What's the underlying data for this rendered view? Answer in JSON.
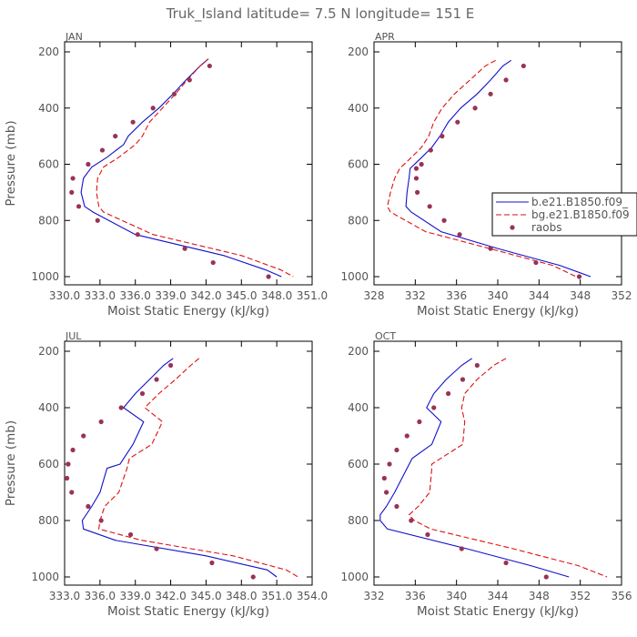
{
  "figure_title": "Truk_Island  latitude= 7.5 N longitude= 151 E",
  "legend": {
    "entries": [
      {
        "label": "b.e21.B1850.f09_",
        "color": "#1010cc",
        "style": "solid"
      },
      {
        "label": "bg.e21.B1850.f09",
        "color": "#dd1111",
        "style": "dashed"
      },
      {
        "label": "raobs",
        "color": "#993355",
        "style": "dot"
      }
    ]
  },
  "colors": {
    "model": "#1010cc",
    "bg": "#dd1111",
    "raobs": "#993355",
    "axis": "#000000",
    "text": "#555555"
  },
  "chart_data": [
    {
      "type": "line",
      "panel_label": "JAN",
      "xlabel": "Moist Static Energy (kJ/kg)",
      "ylabel": "Pressure (mb)",
      "xlim": [
        330.0,
        351.0
      ],
      "ylim": [
        1000,
        200
      ],
      "xticks": [
        330.0,
        333.0,
        336.0,
        339.0,
        342.0,
        345.0,
        348.0,
        351.0
      ],
      "xtick_labels": [
        "330.0",
        "333.0",
        "336.0",
        "339.0",
        "342.0",
        "345.0",
        "348.0",
        "351.0"
      ],
      "yticks": [
        200,
        400,
        600,
        800,
        1000
      ],
      "series": [
        {
          "name": "b.e21.B1850.f09_",
          "style": "solid",
          "x": [
            342.2,
            341.5,
            340.3,
            339.2,
            338.0,
            336.6,
            335.4,
            335.0,
            333.6,
            332.3,
            331.6,
            331.4,
            331.7,
            332.4,
            336.0,
            343.5,
            347.0,
            348.4
          ],
          "y": [
            225,
            250,
            300,
            350,
            400,
            450,
            500,
            530,
            575,
            610,
            650,
            700,
            750,
            770,
            850,
            925,
            975,
            1000
          ]
        },
        {
          "name": "bg.e21.B1850.f09",
          "style": "dashed",
          "x": [
            342.2,
            341.5,
            340.4,
            339.4,
            338.3,
            337.2,
            336.6,
            336.0,
            334.6,
            333.3,
            332.8,
            332.7,
            332.9,
            333.3,
            337.5,
            345.0,
            348.3,
            349.4
          ],
          "y": [
            225,
            250,
            300,
            350,
            400,
            450,
            500,
            530,
            575,
            610,
            650,
            700,
            750,
            770,
            850,
            925,
            975,
            1000
          ]
        },
        {
          "name": "raobs",
          "style": "dot",
          "x": [
            342.3,
            340.6,
            339.3,
            337.5,
            335.8,
            334.3,
            333.2,
            332.0,
            330.7,
            330.6,
            331.2,
            332.8,
            336.2,
            340.2,
            342.6,
            347.3
          ],
          "y": [
            250,
            300,
            350,
            400,
            450,
            500,
            550,
            600,
            650,
            700,
            750,
            800,
            850,
            900,
            950,
            1000
          ]
        }
      ]
    },
    {
      "type": "line",
      "panel_label": "APR",
      "xlabel": "Moist Static Energy (kJ/kg)",
      "ylabel": "",
      "xlim": [
        328,
        352
      ],
      "ylim": [
        1000,
        200
      ],
      "xticks": [
        328,
        332,
        336,
        340,
        344,
        348,
        352
      ],
      "xtick_labels": [
        "328",
        "332",
        "336",
        "340",
        "344",
        "348",
        "352"
      ],
      "yticks": [
        200,
        400,
        600,
        800,
        1000
      ],
      "series": [
        {
          "name": "b.e21.B1850.f09_",
          "style": "solid",
          "x": [
            341.3,
            340.5,
            339.3,
            338.0,
            336.4,
            335.2,
            334.4,
            333.6,
            332.5,
            331.5,
            331.4,
            331.2,
            331.1,
            331.6,
            334.5,
            340.0,
            346.0,
            349.0
          ],
          "y": [
            230,
            250,
            300,
            350,
            400,
            450,
            500,
            540,
            580,
            615,
            650,
            700,
            750,
            770,
            840,
            900,
            960,
            1000
          ]
        },
        {
          "name": "bg.e21.B1850.f09",
          "style": "dashed",
          "x": [
            339.8,
            338.8,
            337.3,
            335.8,
            334.6,
            333.8,
            333.3,
            332.6,
            331.5,
            330.5,
            330.0,
            329.6,
            329.3,
            329.6,
            333.0,
            339.2,
            345.3,
            347.6
          ],
          "y": [
            230,
            250,
            300,
            350,
            400,
            450,
            500,
            540,
            580,
            615,
            650,
            700,
            750,
            770,
            840,
            900,
            960,
            1000
          ]
        },
        {
          "name": "raobs",
          "style": "dot",
          "x": [
            342.5,
            340.8,
            339.3,
            337.8,
            336.1,
            334.6,
            333.5,
            332.6,
            332.1,
            332.1,
            332.2,
            333.4,
            334.8,
            336.3,
            339.3,
            343.7,
            347.9
          ],
          "y": [
            250,
            300,
            350,
            400,
            450,
            500,
            550,
            600,
            615,
            650,
            700,
            750,
            800,
            850,
            900,
            950,
            1000
          ]
        }
      ]
    },
    {
      "type": "line",
      "panel_label": "JUL",
      "xlabel": "Moist Static Energy (kJ/kg)",
      "ylabel": "Pressure (mb)",
      "xlim": [
        333.0,
        354.0
      ],
      "ylim": [
        1000,
        200
      ],
      "xticks": [
        333.0,
        336.0,
        339.0,
        342.0,
        345.0,
        348.0,
        351.0,
        354.0
      ],
      "xtick_labels": [
        "333.0",
        "336.0",
        "339.0",
        "342.0",
        "345.0",
        "348.0",
        "351.0",
        "354.0"
      ],
      "yticks": [
        200,
        400,
        600,
        800,
        1000
      ],
      "series": [
        {
          "name": "b.e21.B1850.f09_",
          "style": "solid",
          "x": [
            342.2,
            341.4,
            340.2,
            339.0,
            338.0,
            339.7,
            338.8,
            337.7,
            336.6,
            336.0,
            335.3,
            334.5,
            334.6,
            337.3,
            345.0,
            350.2,
            351.0
          ],
          "y": [
            225,
            250,
            300,
            350,
            400,
            450,
            530,
            600,
            615,
            700,
            750,
            800,
            830,
            870,
            925,
            975,
            1000
          ]
        },
        {
          "name": "bg.e21.B1850.f09",
          "style": "dashed",
          "x": [
            344.4,
            343.7,
            342.4,
            341.0,
            339.8,
            341.3,
            340.4,
            338.5,
            338.3,
            337.6,
            336.4,
            336.0,
            335.9,
            339.5,
            347.3,
            351.8,
            352.8
          ],
          "y": [
            225,
            250,
            300,
            350,
            400,
            450,
            530,
            580,
            615,
            700,
            750,
            800,
            830,
            870,
            925,
            975,
            1000
          ]
        },
        {
          "name": "raobs",
          "style": "dot",
          "x": [
            342.0,
            340.8,
            339.6,
            337.8,
            336.1,
            334.6,
            333.7,
            333.3,
            333.3,
            333.2,
            333.6,
            335.0,
            336.1,
            338.6,
            340.8,
            345.5,
            349.0
          ],
          "y": [
            250,
            300,
            350,
            400,
            450,
            500,
            550,
            600,
            600,
            650,
            700,
            750,
            800,
            850,
            900,
            950,
            1000
          ]
        }
      ]
    },
    {
      "type": "line",
      "panel_label": "OCT",
      "xlabel": "Moist Static Energy (kJ/kg)",
      "ylabel": "",
      "xlim": [
        332,
        356
      ],
      "ylim": [
        1000,
        200
      ],
      "xticks": [
        332,
        336,
        340,
        344,
        348,
        352,
        356
      ],
      "xtick_labels": [
        "332",
        "336",
        "340",
        "344",
        "348",
        "352",
        "356"
      ],
      "yticks": [
        200,
        400,
        600,
        800,
        1000
      ],
      "series": [
        {
          "name": "b.e21.B1850.f09_",
          "style": "solid",
          "x": [
            341.5,
            340.5,
            339.0,
            337.8,
            337.1,
            338.5,
            337.6,
            335.7,
            335.2,
            334.0,
            333.2,
            332.6,
            332.6,
            333.3,
            341.0,
            347.2,
            350.9
          ],
          "y": [
            225,
            250,
            300,
            350,
            400,
            450,
            530,
            580,
            615,
            700,
            750,
            780,
            800,
            830,
            900,
            960,
            1000
          ]
        },
        {
          "name": "bg.e21.B1850.f09",
          "style": "dashed",
          "x": [
            344.8,
            343.6,
            342.0,
            340.8,
            340.5,
            340.8,
            340.6,
            337.6,
            337.6,
            337.4,
            336.3,
            335.4,
            335.9,
            337.5,
            345.5,
            351.8,
            354.6
          ],
          "y": [
            225,
            250,
            300,
            350,
            400,
            450,
            530,
            600,
            615,
            700,
            750,
            780,
            800,
            830,
            900,
            960,
            1000
          ]
        },
        {
          "name": "raobs",
          "style": "dot",
          "x": [
            342.0,
            340.6,
            339.2,
            337.8,
            336.4,
            335.2,
            334.2,
            333.5,
            333.0,
            333.2,
            334.2,
            335.6,
            337.2,
            340.5,
            344.8,
            348.7
          ],
          "y": [
            250,
            300,
            350,
            400,
            450,
            500,
            550,
            600,
            650,
            700,
            750,
            800,
            850,
            900,
            950,
            1000
          ]
        }
      ]
    }
  ]
}
